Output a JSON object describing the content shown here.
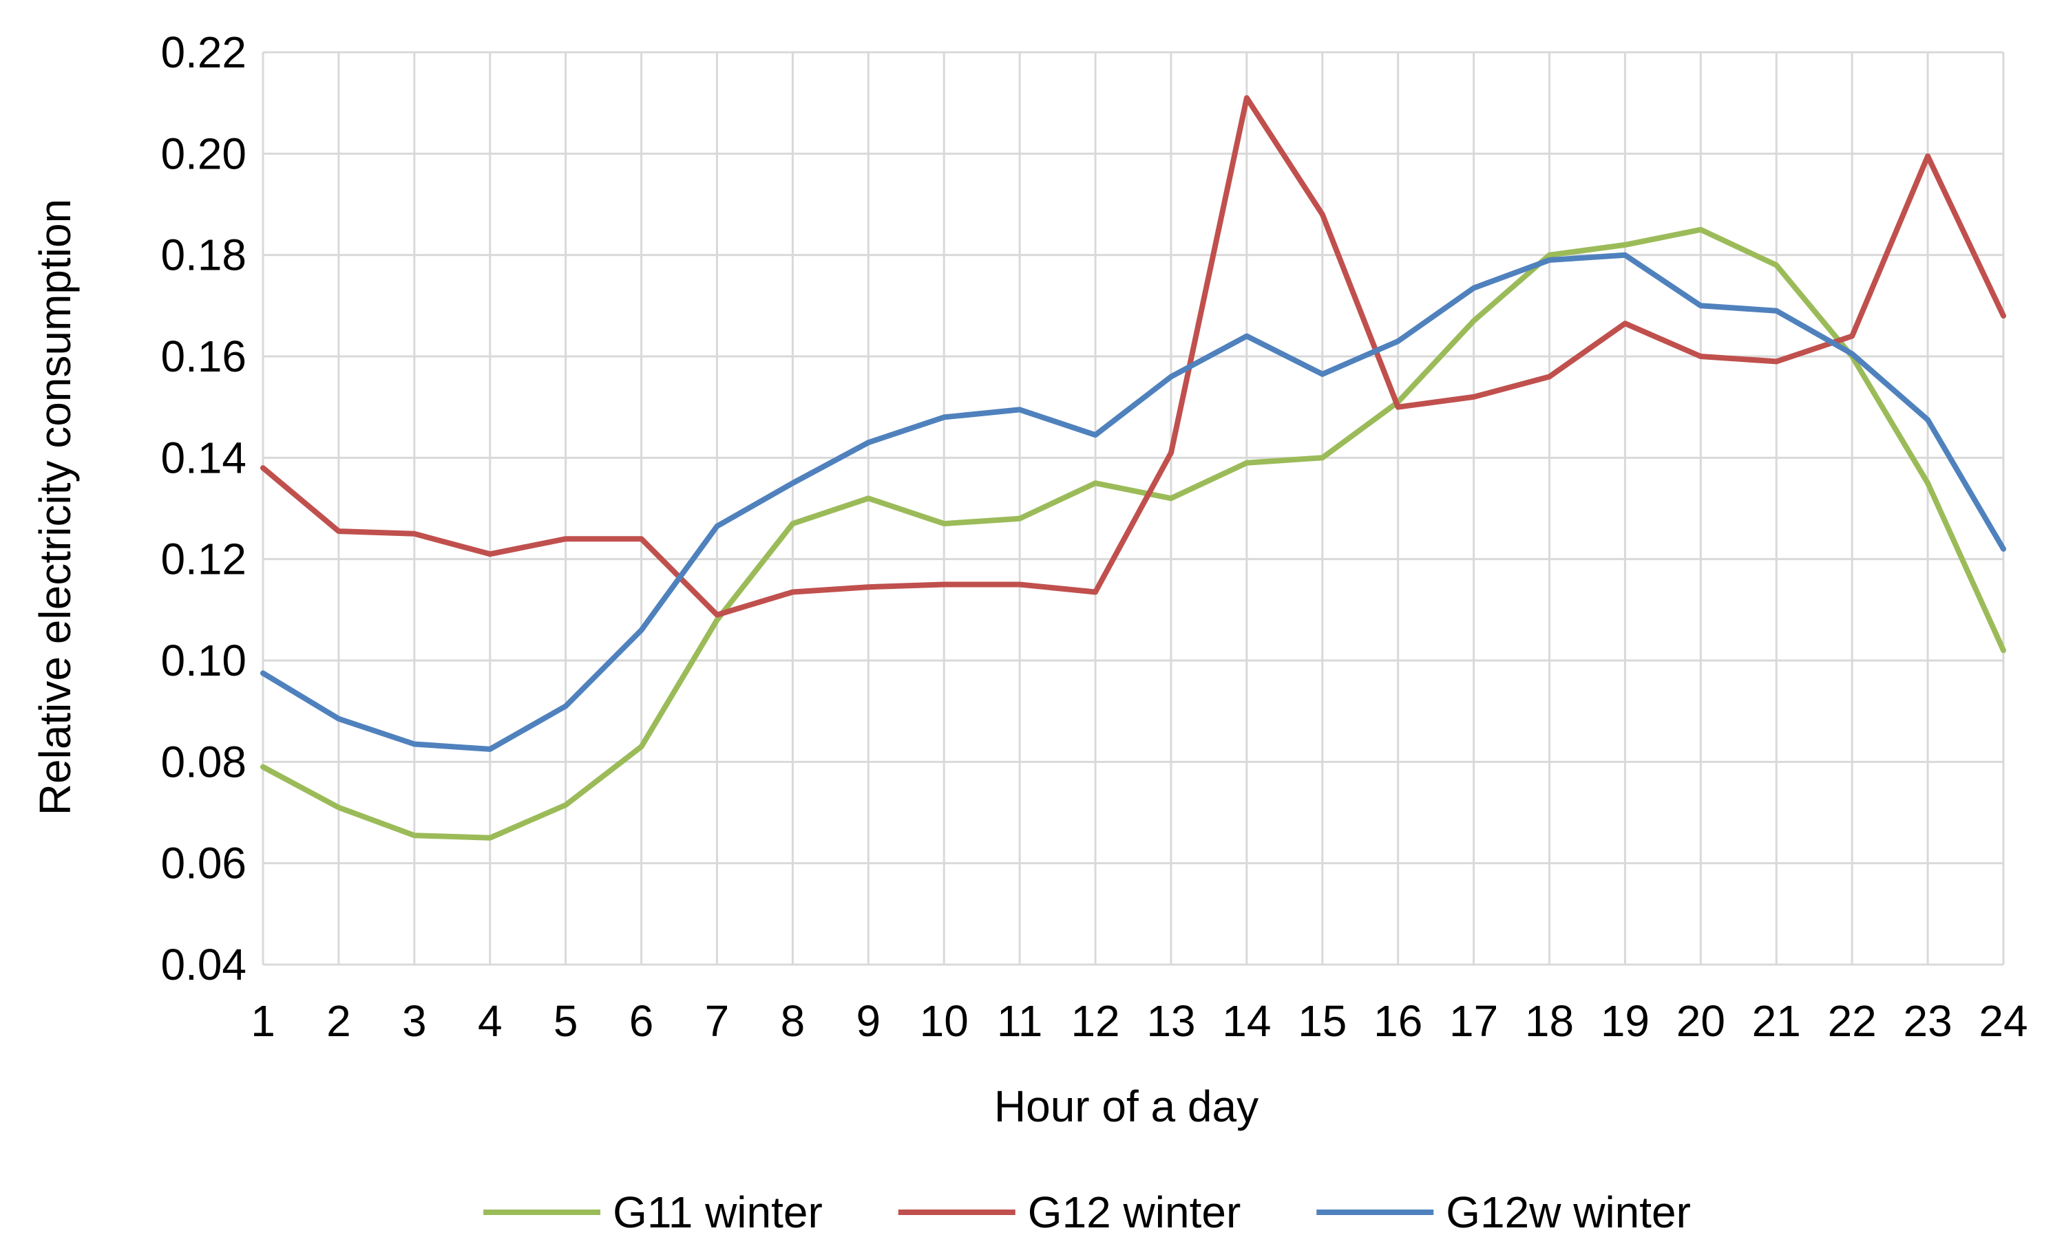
{
  "chart_data": {
    "type": "line",
    "title": "",
    "xlabel": "Hour of a day",
    "ylabel": "Relative electricity consumption",
    "x": [
      1,
      2,
      3,
      4,
      5,
      6,
      7,
      8,
      9,
      10,
      11,
      12,
      13,
      14,
      15,
      16,
      17,
      18,
      19,
      20,
      21,
      22,
      23,
      24
    ],
    "x_tick_labels": [
      "1",
      "2",
      "3",
      "4",
      "5",
      "6",
      "7",
      "8",
      "9",
      "10",
      "11",
      "12",
      "13",
      "14",
      "15",
      "16",
      "17",
      "18",
      "19",
      "20",
      "21",
      "22",
      "23",
      "24"
    ],
    "ylim": [
      0.04,
      0.22
    ],
    "y_ticks": [
      0.04,
      0.06,
      0.08,
      0.1,
      0.12,
      0.14,
      0.16,
      0.18,
      0.2,
      0.22
    ],
    "y_tick_labels": [
      "0.04",
      "0.06",
      "0.08",
      "0.10",
      "0.12",
      "0.14",
      "0.16",
      "0.18",
      "0.20",
      "0.22"
    ],
    "grid": true,
    "legend_position": "bottom",
    "series": [
      {
        "name": "G11 winter",
        "color": "#9bbb59",
        "values": [
          0.079,
          0.071,
          0.0655,
          0.065,
          0.0715,
          0.083,
          0.108,
          0.127,
          0.132,
          0.127,
          0.128,
          0.135,
          0.132,
          0.139,
          0.14,
          0.151,
          0.167,
          0.18,
          0.182,
          0.185,
          0.178,
          0.16,
          0.135,
          0.102
        ]
      },
      {
        "name": "G12 winter",
        "color": "#c0504d",
        "values": [
          0.138,
          0.1255,
          0.125,
          0.121,
          0.124,
          0.124,
          0.109,
          0.1135,
          0.1145,
          0.115,
          0.115,
          0.1135,
          0.141,
          0.211,
          0.188,
          0.15,
          0.152,
          0.156,
          0.1665,
          0.16,
          0.159,
          0.164,
          0.1995,
          0.168
        ]
      },
      {
        "name": "G12w winter",
        "color": "#4f81bd",
        "values": [
          0.0975,
          0.0885,
          0.0835,
          0.0825,
          0.091,
          0.106,
          0.1265,
          0.135,
          0.143,
          0.148,
          0.1495,
          0.1445,
          0.156,
          0.164,
          0.1565,
          0.163,
          0.1735,
          0.179,
          0.18,
          0.17,
          0.169,
          0.1605,
          0.1475,
          0.122
        ]
      }
    ]
  }
}
